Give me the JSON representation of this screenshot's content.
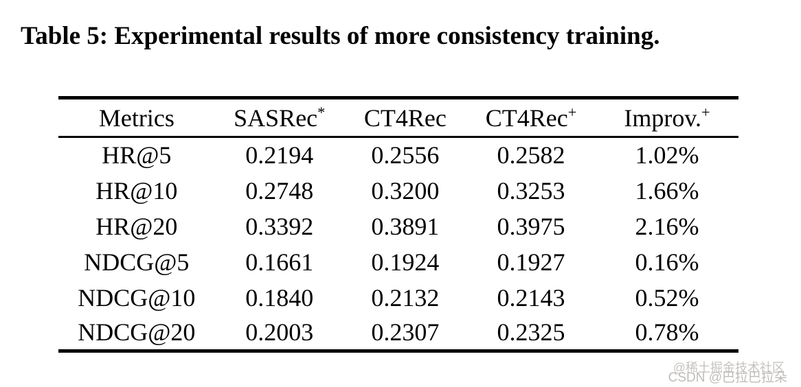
{
  "title": "Table 5: Experimental results of more consistency training.",
  "table": {
    "headers": [
      {
        "base": "Metrics",
        "sup": ""
      },
      {
        "base": "SASRec",
        "sup": "*"
      },
      {
        "base": "CT4Rec",
        "sup": ""
      },
      {
        "base": "CT4Rec",
        "sup": "+"
      },
      {
        "base": "Improv.",
        "sup": "+"
      }
    ],
    "rows": [
      {
        "metric": "HR@5",
        "sasrec": "0.2194",
        "ct4rec": "0.2556",
        "ct4rec_plus": "0.2582",
        "improv": "1.02%"
      },
      {
        "metric": "HR@10",
        "sasrec": "0.2748",
        "ct4rec": "0.3200",
        "ct4rec_plus": "0.3253",
        "improv": "1.66%"
      },
      {
        "metric": "HR@20",
        "sasrec": "0.3392",
        "ct4rec": "0.3891",
        "ct4rec_plus": "0.3975",
        "improv": "2.16%"
      },
      {
        "metric": "NDCG@5",
        "sasrec": "0.1661",
        "ct4rec": "0.1924",
        "ct4rec_plus": "0.1927",
        "improv": "0.16%"
      },
      {
        "metric": "NDCG@10",
        "sasrec": "0.1840",
        "ct4rec": "0.2132",
        "ct4rec_plus": "0.2143",
        "improv": "0.52%"
      },
      {
        "metric": "NDCG@20",
        "sasrec": "0.2003",
        "ct4rec": "0.2307",
        "ct4rec_plus": "0.2325",
        "improv": "0.78%"
      }
    ],
    "bold_column": "CT4Rec+"
  },
  "watermarks": {
    "juejin": "@稀土掘金技术社区",
    "csdn": "CSDN @巴拉巴拉朵"
  },
  "colors": {
    "text": "#000000",
    "rule": "#000000",
    "background": "#ffffff",
    "watermark_gray": "#c2bfbb"
  }
}
